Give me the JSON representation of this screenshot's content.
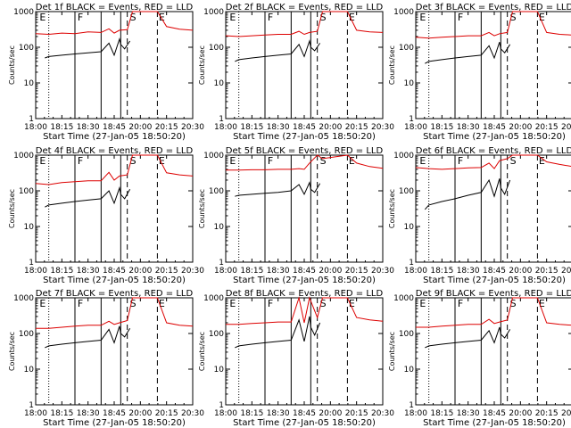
{
  "figure": {
    "xlabel": "Start Time (27-Jan-05 18:50:20)",
    "ylabel": "Counts/sec"
  },
  "x_ticks": [
    "18:00",
    "18:15",
    "18:30",
    "18:45",
    "20:00",
    "20:15",
    "20:30"
  ],
  "y_ticks": [
    "1",
    "10",
    "100",
    "1000"
  ],
  "markers": [
    "E",
    "F",
    "S",
    "E"
  ],
  "chart_data": [
    {
      "type": "line",
      "title": "Det 1f BLACK = Events, RED = LLD",
      "ylim": [
        1,
        1000
      ],
      "yscale": "log",
      "colors": {
        "events": "#000000",
        "lld": "#dd0000"
      },
      "series": [
        {
          "legend": "BLACK = Events",
          "x": [
            0.35,
            0.5,
            1.0,
            1.5,
            2.0,
            2.5,
            2.8,
            3.0,
            3.2,
            3.25,
            3.4,
            3.6
          ],
          "y": [
            50,
            55,
            60,
            65,
            70,
            75,
            130,
            60,
            170,
            120,
            90,
            150
          ]
        },
        {
          "legend": "RED = LLD",
          "x": [
            0.0,
            0.5,
            1.0,
            1.5,
            2.0,
            2.5,
            2.8,
            3.0,
            3.2,
            3.5,
            3.7,
            4.65,
            5.0,
            5.5,
            6.0
          ],
          "y": [
            240,
            230,
            250,
            240,
            270,
            260,
            330,
            250,
            300,
            310,
            1000,
            1000,
            380,
            320,
            300
          ]
        }
      ]
    },
    {
      "type": "line",
      "title": "Det 2f BLACK = Events, RED = LLD",
      "ylim": [
        1,
        1000
      ],
      "yscale": "log",
      "colors": {
        "events": "#000000",
        "lld": "#dd0000"
      },
      "series": [
        {
          "legend": "BLACK = Events",
          "x": [
            0.35,
            0.5,
            1.0,
            1.5,
            2.0,
            2.5,
            2.8,
            3.0,
            3.2,
            3.25,
            3.4,
            3.6
          ],
          "y": [
            40,
            45,
            50,
            55,
            60,
            65,
            120,
            55,
            150,
            100,
            80,
            130
          ]
        },
        {
          "legend": "RED = LLD",
          "x": [
            0.0,
            0.5,
            1.0,
            1.5,
            2.0,
            2.5,
            2.8,
            3.0,
            3.2,
            3.5,
            3.7,
            4.65,
            5.0,
            5.5,
            6.0
          ],
          "y": [
            210,
            200,
            210,
            220,
            230,
            230,
            280,
            230,
            260,
            280,
            1000,
            1000,
            300,
            270,
            260
          ]
        }
      ]
    },
    {
      "type": "line",
      "title": "Det 3f BLACK = Events, RED = LLD",
      "ylim": [
        1,
        1000
      ],
      "yscale": "log",
      "colors": {
        "events": "#000000",
        "lld": "#dd0000"
      },
      "series": [
        {
          "legend": "BLACK = Events",
          "x": [
            0.35,
            0.5,
            1.0,
            1.5,
            2.0,
            2.5,
            2.8,
            3.0,
            3.2,
            3.25,
            3.4,
            3.6
          ],
          "y": [
            35,
            40,
            45,
            50,
            55,
            60,
            110,
            50,
            140,
            90,
            70,
            120
          ]
        },
        {
          "legend": "RED = LLD",
          "x": [
            0.0,
            0.5,
            1.0,
            1.5,
            2.0,
            2.5,
            2.8,
            3.0,
            3.2,
            3.5,
            3.7,
            4.65,
            5.0,
            5.5,
            6.0
          ],
          "y": [
            190,
            180,
            190,
            200,
            210,
            210,
            260,
            210,
            240,
            260,
            1000,
            1000,
            260,
            230,
            220
          ]
        }
      ]
    },
    {
      "type": "line",
      "title": "Det 4f BLACK = Events, RED = LLD",
      "ylim": [
        1,
        1000
      ],
      "yscale": "log",
      "colors": {
        "events": "#000000",
        "lld": "#dd0000"
      },
      "series": [
        {
          "legend": "BLACK = Events",
          "x": [
            0.35,
            0.5,
            1.0,
            1.5,
            2.0,
            2.5,
            2.8,
            3.0,
            3.2,
            3.25,
            3.4,
            3.6
          ],
          "y": [
            35,
            40,
            45,
            50,
            55,
            60,
            100,
            45,
            120,
            80,
            60,
            110
          ]
        },
        {
          "legend": "RED = LLD",
          "x": [
            0.0,
            0.5,
            1.0,
            1.5,
            2.0,
            2.5,
            2.8,
            3.0,
            3.2,
            3.5,
            3.7,
            4.65,
            5.0,
            5.5,
            6.0
          ],
          "y": [
            160,
            150,
            170,
            180,
            190,
            190,
            330,
            200,
            260,
            280,
            1000,
            1000,
            320,
            280,
            260
          ]
        }
      ]
    },
    {
      "type": "line",
      "title": "Det 5f BLACK = Events, RED = LLD",
      "ylim": [
        1,
        1000
      ],
      "yscale": "log",
      "colors": {
        "events": "#000000",
        "lld": "#dd0000"
      },
      "series": [
        {
          "legend": "BLACK = Events",
          "x": [
            0.35,
            0.5,
            1.0,
            1.5,
            2.0,
            2.5,
            2.8,
            3.0,
            3.2,
            3.25,
            3.4,
            3.6
          ],
          "y": [
            70,
            75,
            80,
            85,
            90,
            100,
            150,
            80,
            170,
            110,
            90,
            160
          ]
        },
        {
          "legend": "RED = LLD",
          "x": [
            0.0,
            0.5,
            1.0,
            1.5,
            2.0,
            2.5,
            2.8,
            3.0,
            3.2,
            3.5,
            3.7,
            4.65,
            5.0,
            5.5,
            6.0
          ],
          "y": [
            380,
            380,
            390,
            390,
            400,
            400,
            420,
            400,
            600,
            1000,
            800,
            1000,
            600,
            480,
            430
          ]
        }
      ]
    },
    {
      "type": "line",
      "title": "Det 6f BLACK = Events, RED = LLD",
      "ylim": [
        1,
        1000
      ],
      "yscale": "log",
      "colors": {
        "events": "#000000",
        "lld": "#dd0000"
      },
      "series": [
        {
          "legend": "BLACK = Events",
          "x": [
            0.35,
            0.5,
            1.0,
            1.5,
            2.0,
            2.5,
            2.8,
            3.0,
            3.2,
            3.25,
            3.4,
            3.6
          ],
          "y": [
            30,
            40,
            50,
            60,
            75,
            90,
            200,
            70,
            220,
            120,
            80,
            200
          ]
        },
        {
          "legend": "RED = LLD",
          "x": [
            0.0,
            0.5,
            1.0,
            1.5,
            2.0,
            2.5,
            2.8,
            3.0,
            3.2,
            3.5,
            3.7,
            4.65,
            5.0,
            5.5,
            6.0
          ],
          "y": [
            450,
            420,
            400,
            420,
            440,
            450,
            600,
            420,
            700,
            800,
            1000,
            1000,
            650,
            550,
            480
          ]
        }
      ]
    },
    {
      "type": "line",
      "title": "Det 7f BLACK = Events, RED = LLD",
      "ylim": [
        1,
        1000
      ],
      "yscale": "log",
      "colors": {
        "events": "#000000",
        "lld": "#dd0000"
      },
      "series": [
        {
          "legend": "BLACK = Events",
          "x": [
            0.35,
            0.5,
            1.0,
            1.5,
            2.0,
            2.5,
            2.8,
            3.0,
            3.2,
            3.25,
            3.4,
            3.6
          ],
          "y": [
            40,
            45,
            50,
            55,
            60,
            65,
            130,
            55,
            160,
            100,
            80,
            140
          ]
        },
        {
          "legend": "RED = LLD",
          "x": [
            0.0,
            0.5,
            1.0,
            1.5,
            2.0,
            2.5,
            2.8,
            3.0,
            3.2,
            3.5,
            3.7,
            4.65,
            5.0,
            5.5,
            6.0
          ],
          "y": [
            140,
            140,
            150,
            160,
            170,
            170,
            220,
            180,
            200,
            230,
            1000,
            1000,
            200,
            170,
            160
          ]
        }
      ]
    },
    {
      "type": "line",
      "title": "Det 8f BLACK = Events, RED = LLD",
      "ylim": [
        1,
        1000
      ],
      "yscale": "log",
      "colors": {
        "events": "#000000",
        "lld": "#dd0000"
      },
      "series": [
        {
          "legend": "BLACK = Events",
          "x": [
            0.35,
            0.5,
            1.0,
            1.5,
            2.0,
            2.5,
            2.8,
            3.0,
            3.2,
            3.25,
            3.4,
            3.6
          ],
          "y": [
            40,
            45,
            50,
            55,
            60,
            65,
            240,
            60,
            300,
            150,
            90,
            200
          ]
        },
        {
          "legend": "RED = LLD",
          "x": [
            0.0,
            0.5,
            1.0,
            1.5,
            2.0,
            2.5,
            2.8,
            3.0,
            3.2,
            3.5,
            3.7,
            4.65,
            5.0,
            5.5,
            6.0
          ],
          "y": [
            180,
            180,
            190,
            200,
            210,
            210,
            1000,
            200,
            1000,
            280,
            1000,
            1000,
            280,
            240,
            220
          ]
        }
      ]
    },
    {
      "type": "line",
      "title": "Det 9f BLACK = Events, RED = LLD",
      "ylim": [
        1,
        1000
      ],
      "yscale": "log",
      "colors": {
        "events": "#000000",
        "lld": "#dd0000"
      },
      "series": [
        {
          "legend": "BLACK = Events",
          "x": [
            0.35,
            0.5,
            1.0,
            1.5,
            2.0,
            2.5,
            2.8,
            3.0,
            3.2,
            3.25,
            3.4,
            3.6
          ],
          "y": [
            40,
            45,
            50,
            55,
            60,
            65,
            120,
            55,
            150,
            95,
            75,
            130
          ]
        },
        {
          "legend": "RED = LLD",
          "x": [
            0.0,
            0.5,
            1.0,
            1.5,
            2.0,
            2.5,
            2.8,
            3.0,
            3.2,
            3.5,
            3.7,
            4.65,
            5.0,
            5.5,
            6.0
          ],
          "y": [
            150,
            150,
            160,
            170,
            180,
            180,
            250,
            190,
            210,
            240,
            1000,
            1000,
            200,
            180,
            170
          ]
        }
      ]
    }
  ]
}
